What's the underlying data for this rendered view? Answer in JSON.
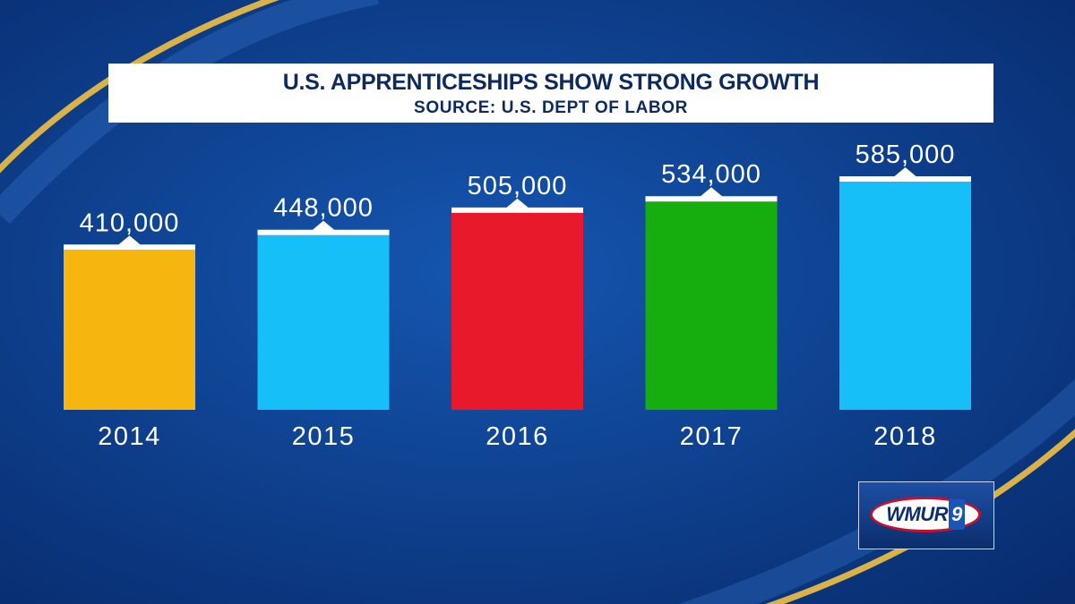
{
  "title": "U.S. APPRENTICESHIPS SHOW STRONG GROWTH",
  "subtitle": "SOURCE: U.S. DEPT OF LABOR",
  "logo": {
    "text": "WMUR",
    "num": "9"
  },
  "colors": {
    "background": "#0a3a86",
    "gold_swoosh": "#d9b24a",
    "label": "#ffffff",
    "cap": "#ffffff"
  },
  "chart_data": {
    "type": "bar",
    "title": "U.S. APPRENTICESHIPS SHOW STRONG GROWTH",
    "subtitle": "SOURCE: U.S. DEPT OF LABOR",
    "categories": [
      "2014",
      "2015",
      "2016",
      "2017",
      "2018"
    ],
    "values": [
      410000,
      448000,
      505000,
      534000,
      585000
    ],
    "value_labels": [
      "410,000",
      "448,000",
      "505,000",
      "534,000",
      "585,000"
    ],
    "bar_colors": [
      "#f7b50f",
      "#16bff8",
      "#e8192a",
      "#16ae0f",
      "#16bff8"
    ],
    "ylim": [
      0,
      585000
    ],
    "xlabel": "",
    "ylabel": "",
    "grid": false
  }
}
